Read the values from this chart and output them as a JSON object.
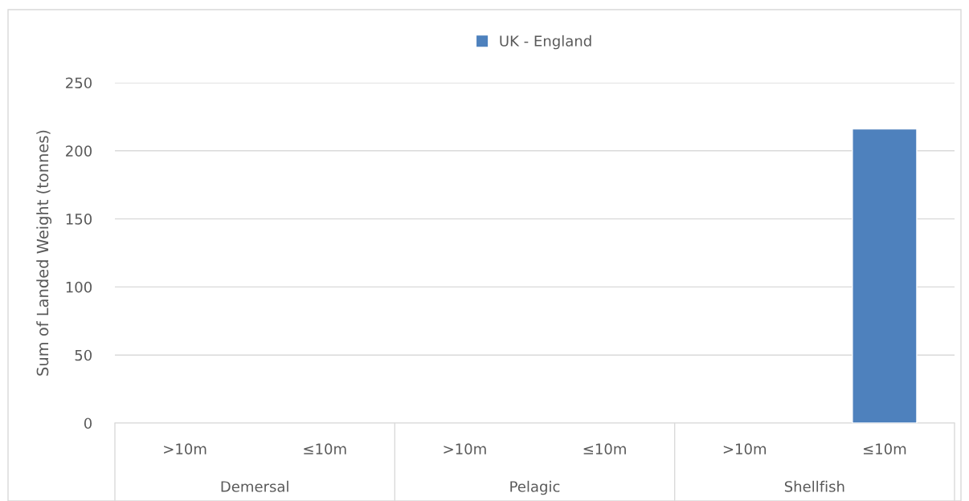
{
  "chart_data": {
    "type": "bar",
    "ylabel": "Sum of Landed Weight (tonnes)",
    "categories": [
      ">10m",
      "≤10m",
      ">10m",
      "≤10m",
      ">10m",
      "≤10m"
    ],
    "series": [
      {
        "name": "UK - England",
        "color": "#4e81bd",
        "values": [
          null,
          null,
          null,
          null,
          null,
          216
        ]
      }
    ],
    "ylim": [
      0,
      250
    ],
    "yticks": [
      0,
      50,
      100,
      150,
      200,
      250
    ],
    "grid": "y",
    "legend": "top",
    "annotations": [
      "Demersal",
      "Pelagic",
      "Shellfish"
    ]
  }
}
